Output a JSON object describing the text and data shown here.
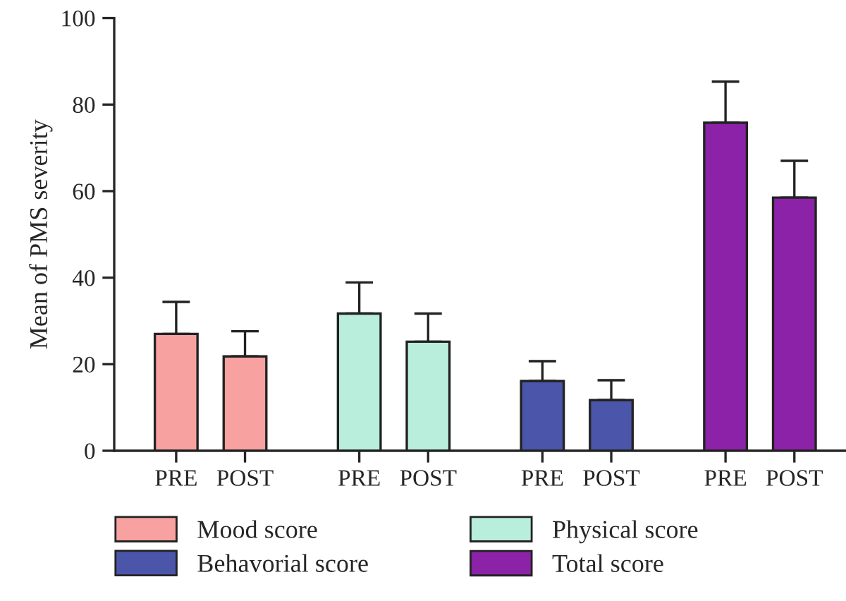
{
  "chart_data": {
    "type": "bar",
    "ylabel": "Mean of PMS severity",
    "categories": [
      "PRE",
      "POST",
      "PRE",
      "POST",
      "PRE",
      "POST",
      "PRE",
      "POST"
    ],
    "series": [
      {
        "name": "Mood score",
        "color": "#f7a1a1",
        "values": [
          27.0,
          21.8,
          null,
          null,
          null,
          null,
          null,
          null
        ],
        "errors": [
          [
            27.0,
            34.4
          ],
          [
            21.8,
            27.6
          ],
          null,
          null,
          null,
          null,
          null,
          null
        ]
      },
      {
        "name": "Physical score",
        "color": "#b8eedb",
        "values": [
          null,
          null,
          31.7,
          25.2,
          null,
          null,
          null,
          null
        ],
        "errors": [
          null,
          null,
          [
            31.7,
            38.9
          ],
          [
            25.2,
            31.7
          ],
          null,
          null,
          null,
          null
        ]
      },
      {
        "name": "Behavorial score",
        "color": "#4b55aa",
        "values": [
          null,
          null,
          null,
          null,
          16.1,
          11.7,
          null,
          null
        ],
        "errors": [
          null,
          null,
          null,
          null,
          [
            16.1,
            20.7
          ],
          [
            11.7,
            16.3
          ],
          null,
          null
        ]
      },
      {
        "name": "Total score",
        "color": "#8c22a8",
        "values": [
          null,
          null,
          null,
          null,
          null,
          null,
          75.8,
          58.5
        ],
        "errors": [
          null,
          null,
          null,
          null,
          null,
          null,
          [
            75.8,
            85.3
          ],
          [
            58.5,
            67.0
          ]
        ]
      }
    ],
    "ylim": [
      0,
      100
    ],
    "yticks": [
      0,
      20,
      40,
      60,
      80,
      100
    ],
    "grid": false,
    "legend": "bottom"
  }
}
